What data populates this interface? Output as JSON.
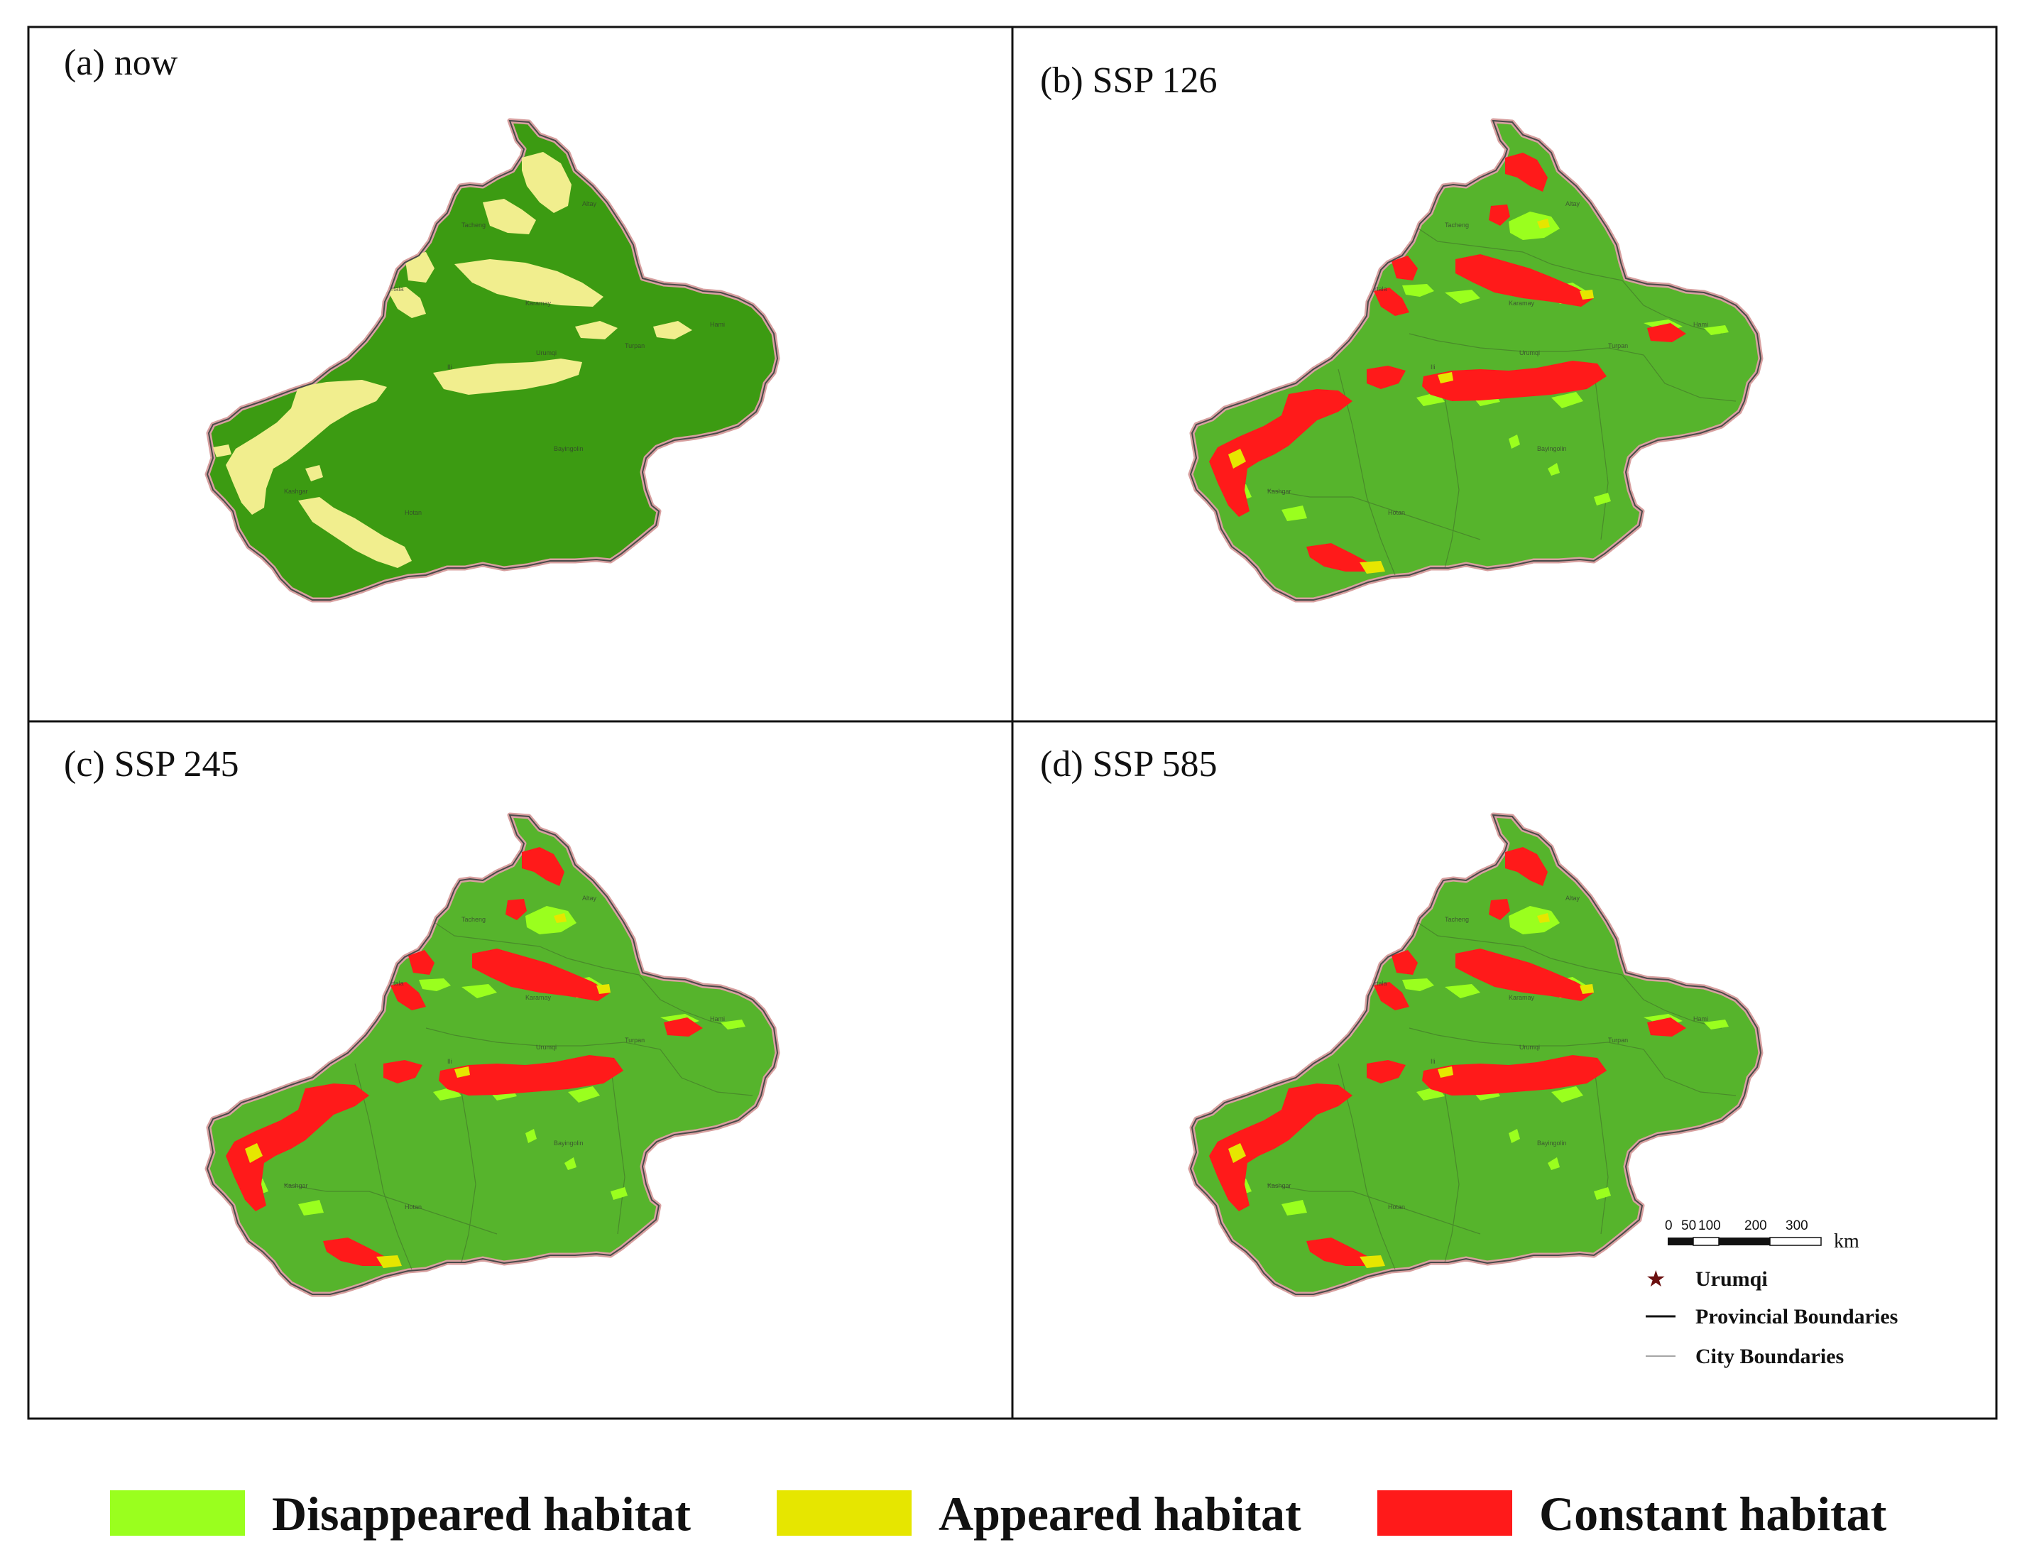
{
  "panels": [
    {
      "id": "a",
      "title": "(a) now"
    },
    {
      "id": "b",
      "title": "(b) SSP 126"
    },
    {
      "id": "c",
      "title": "(c) SSP 245"
    },
    {
      "id": "d",
      "title": "(d) SSP 585"
    }
  ],
  "colors": {
    "base_now": "#3c9b12",
    "base_future": "#56b42c",
    "suitable_now": "#f1ee8e",
    "disappeared": "#9aff1e",
    "appeared": "#e6e600",
    "constant": "#ff1a1a",
    "border": "#d8a0a0"
  },
  "map_key": {
    "scale_ticks": [
      "0",
      "50",
      "100",
      "200",
      "300"
    ],
    "scale_unit": "km",
    "urumqi_label": "Urumqi",
    "provincial_label": "Provincial Boundaries",
    "city_label": "City Boundaries"
  },
  "legend": [
    {
      "label": "Disappeared habitat",
      "color": "#9aff1e"
    },
    {
      "label": "Appeared habitat",
      "color": "#e6e600"
    },
    {
      "label": "Constant habitat",
      "color": "#ff1a1a"
    }
  ]
}
